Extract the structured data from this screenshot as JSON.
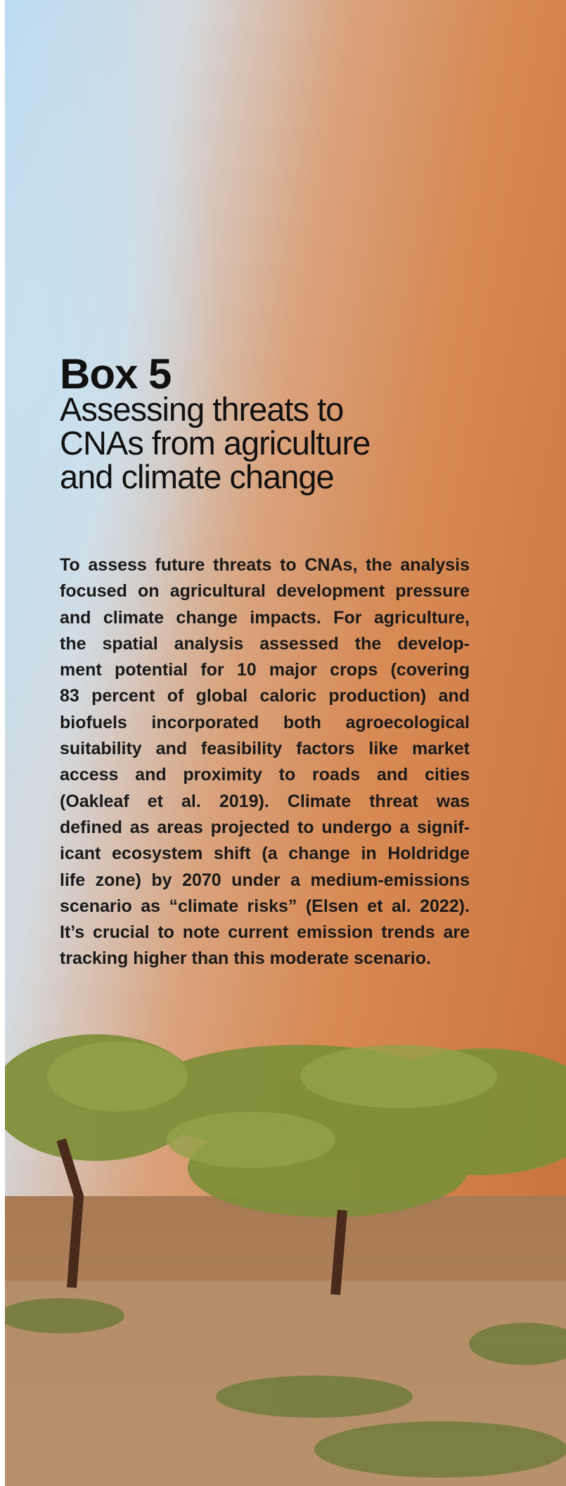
{
  "box": {
    "label": "Box 5",
    "title_lines": [
      "Assessing threats to",
      "CNAs from agriculture",
      "and climate change"
    ],
    "body_lines": [
      "To assess future threats to CNAs, the analysis",
      "focused on agricultural development pressure",
      "and climate change impacts. For agriculture,",
      "the spatial analysis assessed the develop-",
      "ment potential for 10 major crops (covering",
      "83 percent of global caloric production) and",
      "biofuels incorporated both agroecological",
      "suitability and feasibility factors like market",
      "access and proximity to roads and cities",
      "(Oakleaf et al. 2019). Climate threat was",
      "defined as areas projected to undergo a signif-",
      "icant ecosystem shift (a change in Holdridge",
      "life zone) by 2070 under a medium-emissions",
      "scenario as “climate risks” (Elsen et al. 2022).",
      "It’s crucial to note current emission trends are",
      "tracking higher than this moderate scenario."
    ]
  }
}
